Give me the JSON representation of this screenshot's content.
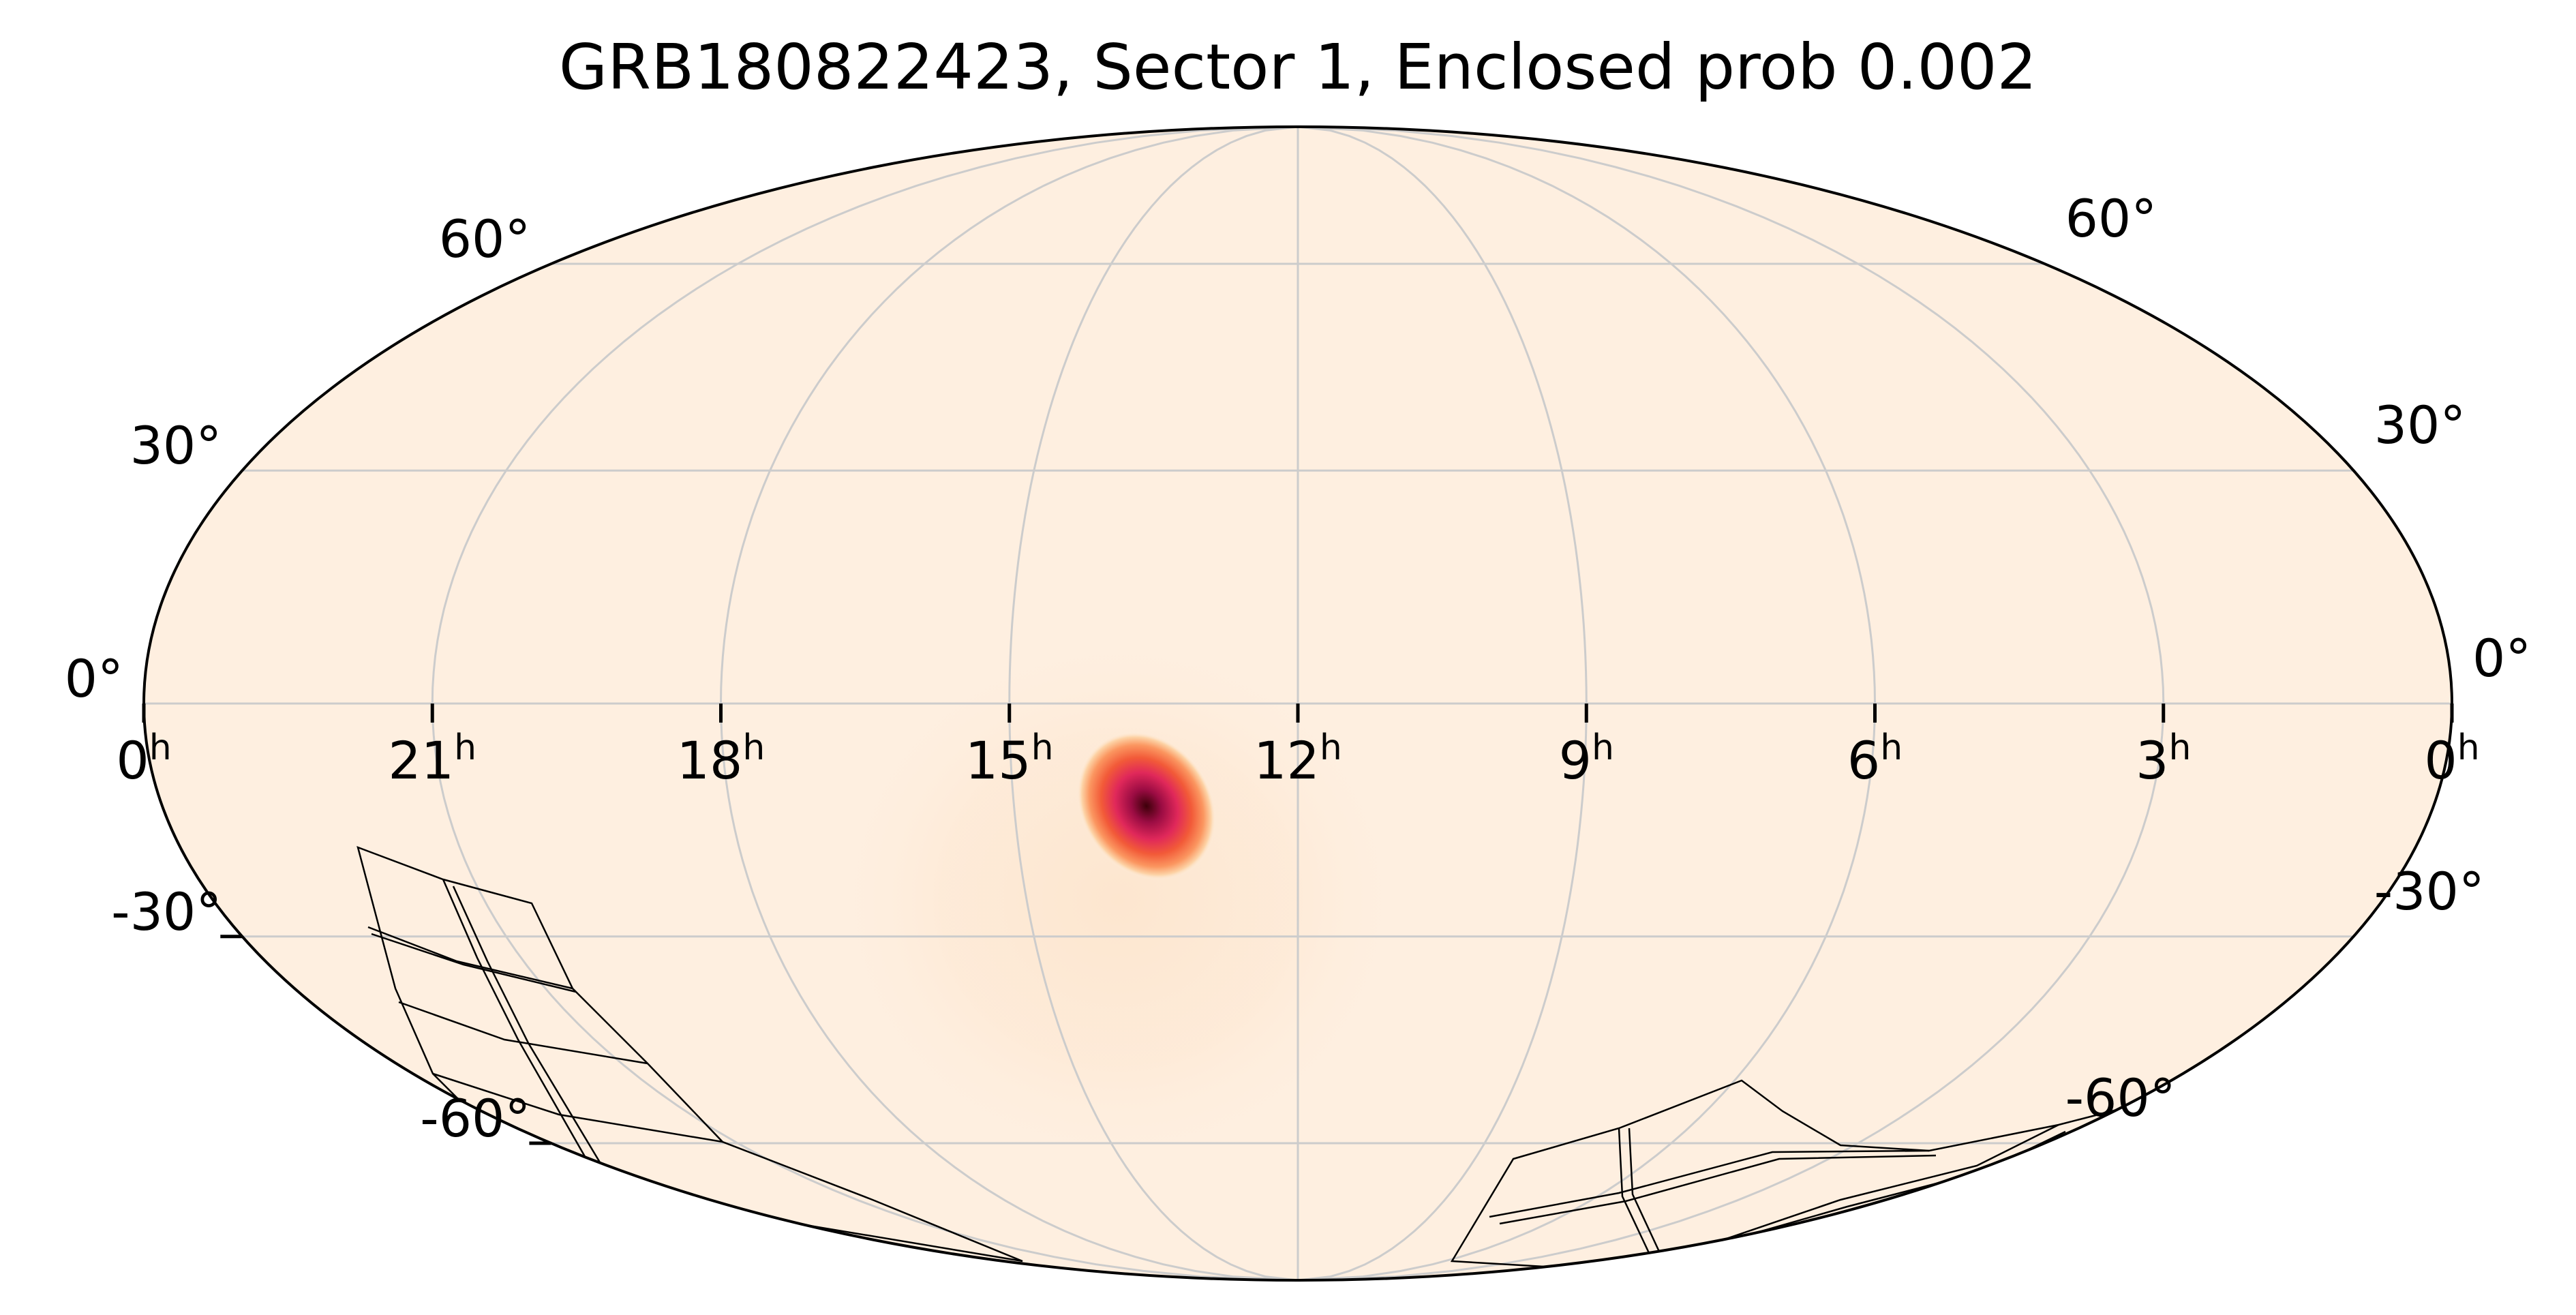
{
  "title": "GRB180822423, Sector 1, Enclosed prob 0.002",
  "projection": "mollweide",
  "background_color": "#feefe0",
  "grid_color": "#cccccc",
  "colormap": [
    "#feefe0",
    "#fdd3a6",
    "#fb9660",
    "#f25a38",
    "#e0285a",
    "#9b0c43",
    "#3d0009"
  ],
  "ra_labels": [
    {
      "hours": 0,
      "text": "0",
      "unit": "h",
      "edge": "left"
    },
    {
      "hours": 21,
      "text": "21",
      "unit": "h"
    },
    {
      "hours": 18,
      "text": "18",
      "unit": "h"
    },
    {
      "hours": 15,
      "text": "15",
      "unit": "h"
    },
    {
      "hours": 12,
      "text": "12",
      "unit": "h"
    },
    {
      "hours": 9,
      "text": "9",
      "unit": "h"
    },
    {
      "hours": 6,
      "text": "6",
      "unit": "h"
    },
    {
      "hours": 3,
      "text": "3",
      "unit": "h"
    },
    {
      "hours": 0,
      "text": "0",
      "unit": "h",
      "edge": "right"
    }
  ],
  "dec_labels_left": [
    "60°",
    "30°",
    "0°",
    "-30°",
    "-60°"
  ],
  "dec_labels_right": [
    "60°",
    "30°",
    "0°",
    "-30°",
    "-60°"
  ],
  "dec_values": [
    60,
    30,
    0,
    -30,
    -60
  ],
  "probability_peak": {
    "ra_hours": 13.6,
    "dec_deg": -13
  },
  "sector": {
    "name": "Sector 1",
    "enclosed_prob": 0.002
  }
}
